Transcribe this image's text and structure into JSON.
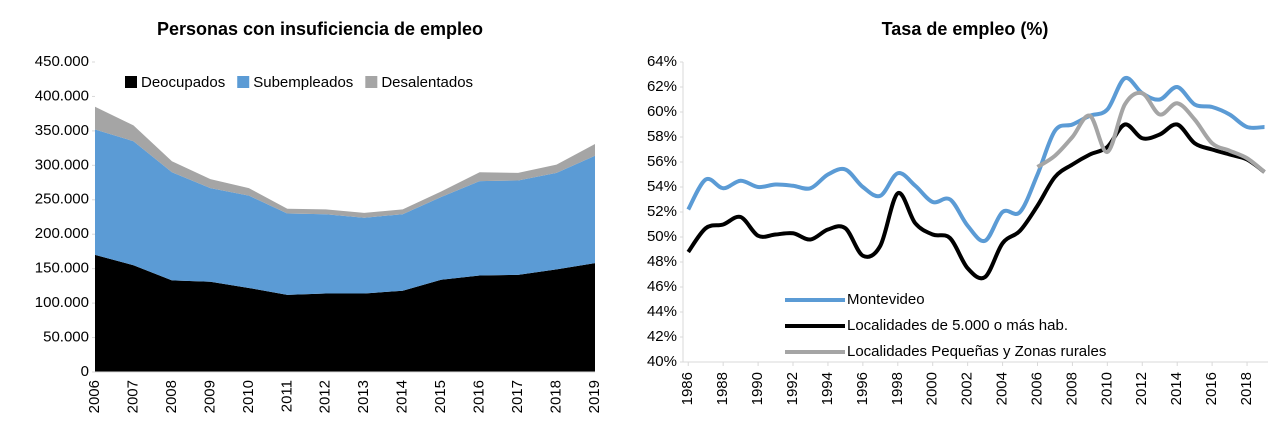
{
  "chart_data": [
    {
      "type": "area",
      "stacked": true,
      "title": "Personas con insuficiencia de empleo",
      "categories": [
        "2006",
        "2007",
        "2008",
        "2009",
        "2010",
        "2011",
        "2012",
        "2013",
        "2014",
        "2015",
        "2016",
        "2017",
        "2018",
        "2019"
      ],
      "series": [
        {
          "name": "Deocupados",
          "color": "#000000",
          "values": [
            170000,
            155000,
            133000,
            131000,
            122000,
            112000,
            114000,
            114000,
            118000,
            134000,
            140000,
            141000,
            149000,
            158000
          ]
        },
        {
          "name": "Subempleados",
          "color": "#5b9bd5",
          "values": [
            182000,
            180000,
            157000,
            136000,
            134000,
            118000,
            115000,
            110000,
            111000,
            120000,
            137000,
            137000,
            140000,
            156000
          ]
        },
        {
          "name": "Desalentados",
          "color": "#a5a5a5",
          "values": [
            33000,
            23000,
            16000,
            13000,
            11000,
            7000,
            7000,
            7000,
            7000,
            8000,
            13000,
            11000,
            12000,
            17000
          ]
        }
      ],
      "ylim": [
        0,
        450000
      ],
      "yticks": [
        0,
        {
          "value": 50000,
          "label": "50.000"
        },
        {
          "value": 100000,
          "label": "100.000"
        },
        {
          "value": 150000,
          "label": "150.000"
        },
        {
          "value": 200000,
          "label": "200.000"
        },
        {
          "value": 250000,
          "label": "250.000"
        },
        {
          "value": 300000,
          "label": "300.000"
        },
        {
          "value": 350000,
          "label": "350.000"
        },
        {
          "value": 400000,
          "label": "400.000"
        },
        {
          "value": 450000,
          "label": "450.000"
        }
      ],
      "legend": "top",
      "grid": false
    },
    {
      "type": "line",
      "title": "Tasa de empleo (%)",
      "x": [
        1986,
        1987,
        1988,
        1989,
        1990,
        1991,
        1992,
        1993,
        1994,
        1995,
        1996,
        1997,
        1998,
        1999,
        2000,
        2001,
        2002,
        2003,
        2004,
        2005,
        2006,
        2007,
        2008,
        2009,
        2010,
        2011,
        2012,
        2013,
        2014,
        2015,
        2016,
        2017,
        2018,
        2019
      ],
      "series": [
        {
          "name": "Montevideo",
          "color": "#5b9bd5",
          "values": [
            52.2,
            54.6,
            53.9,
            54.5,
            54.0,
            54.2,
            54.1,
            53.9,
            55.0,
            55.4,
            54.0,
            53.3,
            55.1,
            54.1,
            52.8,
            53.0,
            50.9,
            49.7,
            52.0,
            52.0,
            55.0,
            58.5,
            59.0,
            59.7,
            60.2,
            62.7,
            61.5,
            61.0,
            62.0,
            60.6,
            60.4,
            59.8,
            58.8,
            58.8
          ]
        },
        {
          "name": "Localidades de 5.000 o más hab.",
          "color": "#000000",
          "values": [
            48.8,
            50.7,
            51.0,
            51.6,
            50.1,
            50.2,
            50.3,
            49.8,
            50.6,
            50.7,
            48.5,
            49.3,
            53.5,
            51.1,
            50.2,
            49.9,
            47.5,
            46.8,
            49.5,
            50.5,
            52.5,
            54.8,
            55.8,
            56.6,
            57.2,
            59.0,
            57.9,
            58.2,
            59.0,
            57.5,
            57.0,
            56.6,
            56.2,
            55.2
          ]
        },
        {
          "name": "Localidades Pequeñas y Zonas rurales",
          "color": "#a5a5a5",
          "values": [
            null,
            null,
            null,
            null,
            null,
            null,
            null,
            null,
            null,
            null,
            null,
            null,
            null,
            null,
            null,
            null,
            null,
            null,
            null,
            null,
            55.6,
            56.5,
            58.0,
            59.7,
            56.8,
            60.6,
            61.5,
            59.8,
            60.7,
            59.4,
            57.5,
            56.9,
            56.3,
            55.2
          ]
        }
      ],
      "xlim": [
        1985.7,
        2019.2
      ],
      "xticks": [
        1986,
        1988,
        1990,
        1992,
        1994,
        1996,
        1998,
        2000,
        2002,
        2004,
        2006,
        2008,
        2010,
        2012,
        2014,
        2016,
        2018
      ],
      "ylim": [
        40,
        64
      ],
      "yticks": [
        {
          "value": 40,
          "label": "40%"
        },
        {
          "value": 42,
          "label": "42%"
        },
        {
          "value": 44,
          "label": "44%"
        },
        {
          "value": 46,
          "label": "46%"
        },
        {
          "value": 48,
          "label": "48%"
        },
        {
          "value": 50,
          "label": "50%"
        },
        {
          "value": 52,
          "label": "52%"
        },
        {
          "value": 54,
          "label": "54%"
        },
        {
          "value": 56,
          "label": "56%"
        },
        {
          "value": 58,
          "label": "58%"
        },
        {
          "value": 60,
          "label": "60%"
        },
        {
          "value": 62,
          "label": "62%"
        },
        {
          "value": 64,
          "label": "64%"
        }
      ],
      "legend": "lower center",
      "grid": false
    }
  ]
}
